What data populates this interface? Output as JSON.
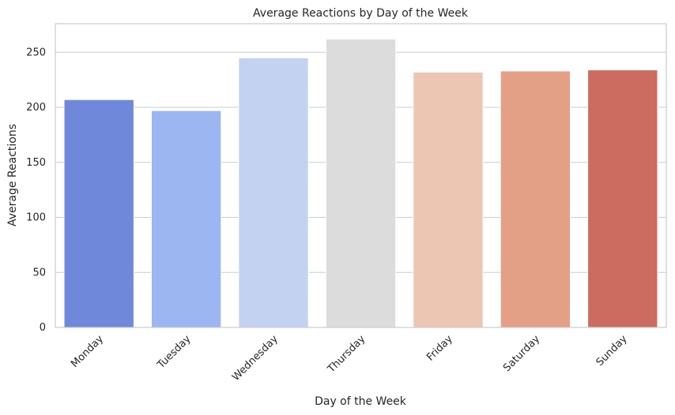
{
  "chart_data": {
    "type": "bar",
    "title": "Average Reactions by Day of the Week",
    "xlabel": "Day of the Week",
    "ylabel": "Average Reactions",
    "categories": [
      "Monday",
      "Tuesday",
      "Wednesday",
      "Thursday",
      "Friday",
      "Saturday",
      "Sunday"
    ],
    "values": [
      207,
      197,
      245,
      262,
      232,
      233,
      234
    ],
    "ylim": [
      0,
      276
    ],
    "yticks": [
      0,
      50,
      100,
      150,
      200,
      250
    ],
    "grid": true,
    "legend": "none",
    "colors": [
      "#7088d9",
      "#9cb6f1",
      "#c2d2f0",
      "#dcdcdc",
      "#ecc6b3",
      "#e49f87",
      "#cc6b60"
    ]
  }
}
